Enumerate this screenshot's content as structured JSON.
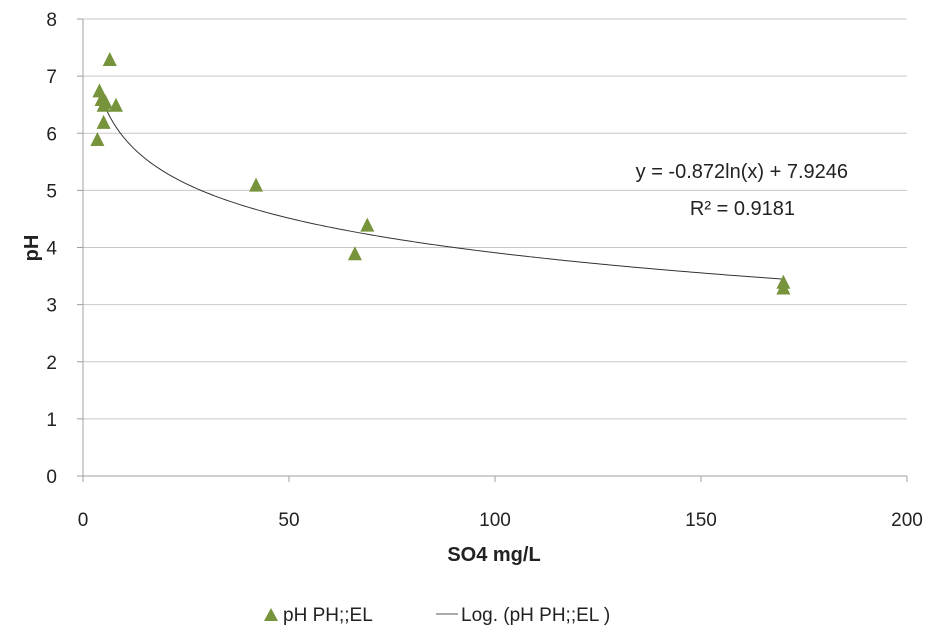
{
  "chart_data": {
    "type": "scatter",
    "xlabel": "SO4 mg/L",
    "ylabel": "pH",
    "xlim": [
      0,
      200
    ],
    "ylim": [
      0,
      8
    ],
    "x_ticks": [
      0,
      50,
      100,
      150,
      200
    ],
    "y_ticks": [
      0,
      1,
      2,
      3,
      4,
      5,
      6,
      7,
      8
    ],
    "grid": "horizontal",
    "legend_position": "bottom",
    "series": [
      {
        "name": "pH PH;;EL",
        "marker": "triangle",
        "color": "#77933c",
        "points": [
          {
            "x": 6.5,
            "y": 7.3
          },
          {
            "x": 4.0,
            "y": 6.75
          },
          {
            "x": 4.5,
            "y": 6.6
          },
          {
            "x": 5.5,
            "y": 6.55
          },
          {
            "x": 5.0,
            "y": 6.5
          },
          {
            "x": 8.0,
            "y": 6.5
          },
          {
            "x": 5.0,
            "y": 6.2
          },
          {
            "x": 3.5,
            "y": 5.9
          },
          {
            "x": 42.0,
            "y": 5.1
          },
          {
            "x": 69.0,
            "y": 4.4
          },
          {
            "x": 66.0,
            "y": 3.9
          },
          {
            "x": 170.0,
            "y": 3.4
          },
          {
            "x": 170.0,
            "y": 3.3
          }
        ]
      }
    ],
    "trendline": {
      "name": "Log. (pH PH;;EL  )",
      "type": "logarithmic",
      "a": -0.872,
      "b": 7.9246,
      "x_range": [
        4,
        170
      ],
      "color": "#333333",
      "equation": "y = -0.872ln(x) + 7.9246",
      "r_squared": "R² = 0.9181"
    }
  }
}
